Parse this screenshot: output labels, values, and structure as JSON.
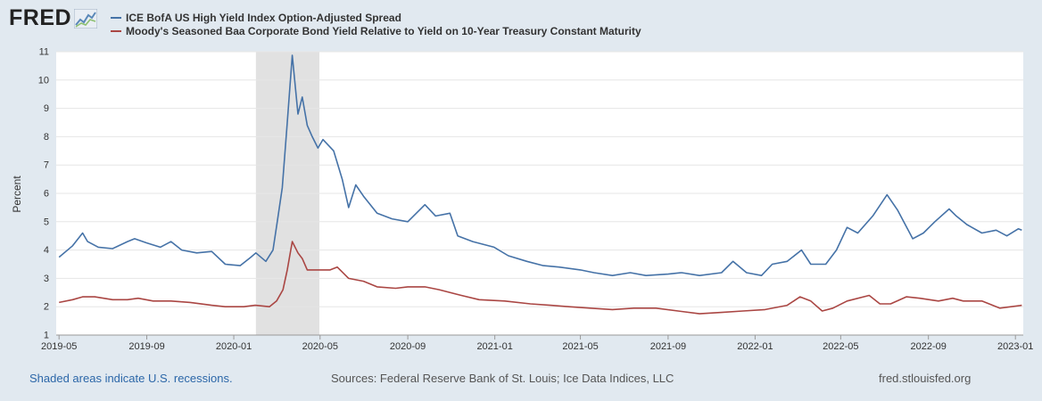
{
  "header": {
    "logo_text": "FRED",
    "logo_icon": "fred-chart-icon"
  },
  "legend": [
    {
      "label": "ICE BofA US High Yield Index Option-Adjusted Spread",
      "color": "#4572a7"
    },
    {
      "label": "Moody's Seasoned Baa Corporate Bond Yield Relative to Yield on 10-Year Treasury Constant Maturity",
      "color": "#aa4643"
    }
  ],
  "footer": {
    "recession_note": "Shaded areas indicate U.S. recessions.",
    "sources": "Sources: Federal Reserve Bank of St. Louis; Ice Data Indices, LLC",
    "site": "fred.stlouisfed.org"
  },
  "chart_data": {
    "type": "line",
    "ylabel": "Percent",
    "xlabel": "",
    "ylim": [
      1,
      11
    ],
    "xlim": [
      "2019-04-27",
      "2023-01-12"
    ],
    "y_ticks": [
      "1",
      "2",
      "3",
      "4",
      "5",
      "6",
      "7",
      "8",
      "9",
      "10",
      "11"
    ],
    "x_ticks": [
      "2019-05",
      "2019-09",
      "2020-01",
      "2020-05",
      "2020-09",
      "2021-01",
      "2021-05",
      "2021-09",
      "2022-01",
      "2022-05",
      "2022-09",
      "2023-01"
    ],
    "grid": true,
    "recession": {
      "start": "2020-02-01",
      "end": "2020-04-30"
    },
    "series": [
      {
        "name": "ICE BofA US High Yield Index Option-Adjusted Spread",
        "color": "#4572a7",
        "points": [
          [
            "2019-05-01",
            3.75
          ],
          [
            "2019-05-20",
            4.15
          ],
          [
            "2019-06-03",
            4.6
          ],
          [
            "2019-06-10",
            4.3
          ],
          [
            "2019-06-25",
            4.1
          ],
          [
            "2019-07-15",
            4.05
          ],
          [
            "2019-08-05",
            4.3
          ],
          [
            "2019-08-15",
            4.4
          ],
          [
            "2019-09-01",
            4.25
          ],
          [
            "2019-09-20",
            4.1
          ],
          [
            "2019-10-05",
            4.3
          ],
          [
            "2019-10-20",
            4.0
          ],
          [
            "2019-11-10",
            3.9
          ],
          [
            "2019-12-01",
            3.95
          ],
          [
            "2019-12-20",
            3.5
          ],
          [
            "2020-01-10",
            3.45
          ],
          [
            "2020-01-25",
            3.75
          ],
          [
            "2020-02-01",
            3.9
          ],
          [
            "2020-02-15",
            3.6
          ],
          [
            "2020-02-25",
            4.0
          ],
          [
            "2020-03-02",
            5.0
          ],
          [
            "2020-03-09",
            6.2
          ],
          [
            "2020-03-16",
            8.5
          ],
          [
            "2020-03-23",
            10.87
          ],
          [
            "2020-03-31",
            8.8
          ],
          [
            "2020-04-06",
            9.4
          ],
          [
            "2020-04-13",
            8.4
          ],
          [
            "2020-04-20",
            8.0
          ],
          [
            "2020-04-28",
            7.6
          ],
          [
            "2020-05-05",
            7.9
          ],
          [
            "2020-05-20",
            7.5
          ],
          [
            "2020-06-01",
            6.5
          ],
          [
            "2020-06-10",
            5.5
          ],
          [
            "2020-06-20",
            6.3
          ],
          [
            "2020-07-01",
            5.9
          ],
          [
            "2020-07-20",
            5.3
          ],
          [
            "2020-08-10",
            5.1
          ],
          [
            "2020-09-01",
            5.0
          ],
          [
            "2020-09-25",
            5.6
          ],
          [
            "2020-10-10",
            5.2
          ],
          [
            "2020-10-30",
            5.3
          ],
          [
            "2020-11-10",
            4.5
          ],
          [
            "2020-12-01",
            4.3
          ],
          [
            "2020-12-31",
            4.1
          ],
          [
            "2021-01-20",
            3.8
          ],
          [
            "2021-02-15",
            3.6
          ],
          [
            "2021-03-10",
            3.45
          ],
          [
            "2021-04-01",
            3.4
          ],
          [
            "2021-05-01",
            3.3
          ],
          [
            "2021-05-20",
            3.2
          ],
          [
            "2021-06-15",
            3.1
          ],
          [
            "2021-07-10",
            3.2
          ],
          [
            "2021-08-01",
            3.1
          ],
          [
            "2021-09-01",
            3.15
          ],
          [
            "2021-09-20",
            3.2
          ],
          [
            "2021-10-15",
            3.1
          ],
          [
            "2021-11-15",
            3.2
          ],
          [
            "2021-12-01",
            3.6
          ],
          [
            "2021-12-20",
            3.2
          ],
          [
            "2022-01-10",
            3.1
          ],
          [
            "2022-01-25",
            3.5
          ],
          [
            "2022-02-15",
            3.6
          ],
          [
            "2022-03-07",
            4.0
          ],
          [
            "2022-03-20",
            3.5
          ],
          [
            "2022-04-10",
            3.5
          ],
          [
            "2022-04-25",
            4.0
          ],
          [
            "2022-05-10",
            4.8
          ],
          [
            "2022-05-25",
            4.6
          ],
          [
            "2022-06-15",
            5.2
          ],
          [
            "2022-07-05",
            5.95
          ],
          [
            "2022-07-20",
            5.4
          ],
          [
            "2022-08-10",
            4.4
          ],
          [
            "2022-08-25",
            4.6
          ],
          [
            "2022-09-10",
            5.0
          ],
          [
            "2022-09-30",
            5.45
          ],
          [
            "2022-10-10",
            5.2
          ],
          [
            "2022-10-25",
            4.9
          ],
          [
            "2022-11-15",
            4.6
          ],
          [
            "2022-12-05",
            4.7
          ],
          [
            "2022-12-20",
            4.5
          ],
          [
            "2023-01-05",
            4.75
          ],
          [
            "2023-01-10",
            4.7
          ]
        ]
      },
      {
        "name": "Moody's Seasoned Baa Corporate Bond Yield Relative to Yield on 10-Year Treasury Constant Maturity",
        "color": "#aa4643",
        "points": [
          [
            "2019-05-01",
            2.15
          ],
          [
            "2019-05-20",
            2.25
          ],
          [
            "2019-06-03",
            2.35
          ],
          [
            "2019-06-20",
            2.35
          ],
          [
            "2019-07-15",
            2.25
          ],
          [
            "2019-08-05",
            2.25
          ],
          [
            "2019-08-20",
            2.3
          ],
          [
            "2019-09-10",
            2.2
          ],
          [
            "2019-10-05",
            2.2
          ],
          [
            "2019-11-01",
            2.15
          ],
          [
            "2019-12-01",
            2.05
          ],
          [
            "2019-12-20",
            2.0
          ],
          [
            "2020-01-15",
            2.0
          ],
          [
            "2020-01-31",
            2.05
          ],
          [
            "2020-02-20",
            2.0
          ],
          [
            "2020-03-01",
            2.2
          ],
          [
            "2020-03-10",
            2.6
          ],
          [
            "2020-03-16",
            3.3
          ],
          [
            "2020-03-23",
            4.3
          ],
          [
            "2020-03-31",
            3.9
          ],
          [
            "2020-04-06",
            3.7
          ],
          [
            "2020-04-13",
            3.3
          ],
          [
            "2020-04-28",
            3.3
          ],
          [
            "2020-05-15",
            3.3
          ],
          [
            "2020-05-25",
            3.4
          ],
          [
            "2020-06-10",
            3.0
          ],
          [
            "2020-07-01",
            2.9
          ],
          [
            "2020-07-20",
            2.7
          ],
          [
            "2020-08-15",
            2.65
          ],
          [
            "2020-09-01",
            2.7
          ],
          [
            "2020-09-25",
            2.7
          ],
          [
            "2020-10-15",
            2.6
          ],
          [
            "2020-11-15",
            2.4
          ],
          [
            "2020-12-10",
            2.25
          ],
          [
            "2021-01-15",
            2.2
          ],
          [
            "2021-02-20",
            2.1
          ],
          [
            "2021-03-20",
            2.05
          ],
          [
            "2021-04-15",
            2.0
          ],
          [
            "2021-05-15",
            1.95
          ],
          [
            "2021-06-15",
            1.9
          ],
          [
            "2021-07-15",
            1.95
          ],
          [
            "2021-08-15",
            1.95
          ],
          [
            "2021-09-15",
            1.85
          ],
          [
            "2021-10-15",
            1.75
          ],
          [
            "2021-11-15",
            1.8
          ],
          [
            "2021-12-15",
            1.85
          ],
          [
            "2022-01-15",
            1.9
          ],
          [
            "2022-02-15",
            2.05
          ],
          [
            "2022-03-05",
            2.35
          ],
          [
            "2022-03-20",
            2.2
          ],
          [
            "2022-04-05",
            1.85
          ],
          [
            "2022-04-20",
            1.95
          ],
          [
            "2022-05-10",
            2.2
          ],
          [
            "2022-06-10",
            2.4
          ],
          [
            "2022-06-25",
            2.1
          ],
          [
            "2022-07-10",
            2.1
          ],
          [
            "2022-08-01",
            2.35
          ],
          [
            "2022-08-20",
            2.3
          ],
          [
            "2022-09-15",
            2.2
          ],
          [
            "2022-10-05",
            2.3
          ],
          [
            "2022-10-20",
            2.2
          ],
          [
            "2022-11-15",
            2.2
          ],
          [
            "2022-12-10",
            1.95
          ],
          [
            "2023-01-10",
            2.05
          ]
        ]
      }
    ]
  }
}
